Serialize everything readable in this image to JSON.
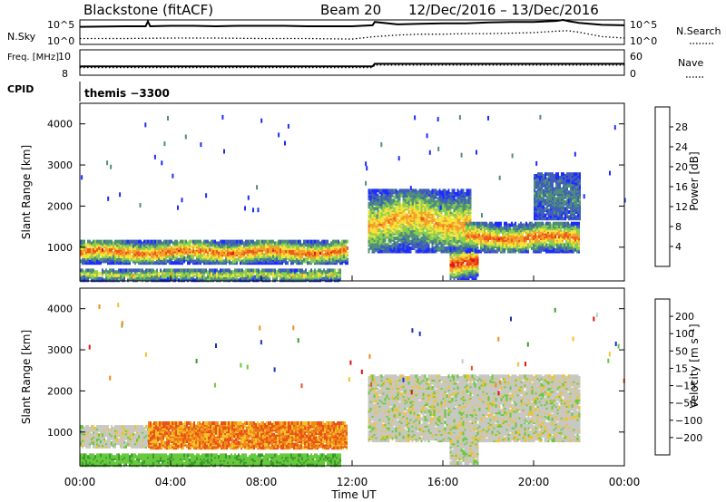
{
  "header": {
    "station": "Blackstone (fitACF)",
    "beam": "Beam 20",
    "dates": "12/Dec/2016 – 13/Dec/2016",
    "cpid_label": "CPID",
    "cpid_value": "themis −3300"
  },
  "colors": {
    "axis": "#000000",
    "dotted_line": "#000000"
  },
  "chart_data": [
    {
      "type": "line",
      "panel": "noise",
      "left_label": "N.Sky",
      "right_label": "N.Search",
      "left_ticks": [
        "10^5",
        "10^0"
      ],
      "right_ticks": [
        "10^5",
        "10^0"
      ],
      "ylim": [
        0,
        5
      ],
      "series": [
        {
          "name": "N.Sky",
          "style": "solid",
          "x": [
            0,
            2,
            2.9,
            3,
            3.1,
            4,
            5,
            6,
            7,
            8,
            9,
            10,
            11,
            12,
            12.9,
            13,
            14,
            15,
            16,
            17,
            18,
            19,
            20,
            21,
            21.3,
            21.5,
            21.6,
            22,
            23,
            24
          ],
          "y": [
            3.6,
            3.7,
            3.7,
            4.7,
            3.7,
            3.8,
            3.8,
            3.7,
            3.8,
            3.8,
            3.8,
            3.7,
            3.7,
            3.7,
            3.9,
            4.6,
            4.1,
            4.2,
            4.3,
            4.3,
            4.5,
            4.6,
            4.6,
            4.8,
            5.0,
            4.8,
            4.7,
            4.4,
            4.0,
            3.9
          ]
        },
        {
          "name": "N.Search",
          "style": "dotted",
          "x": [
            0,
            2,
            4,
            6,
            8,
            10,
            12,
            13,
            14,
            15,
            16,
            17,
            18,
            19,
            20,
            21,
            21.5,
            22,
            23,
            24
          ],
          "y": [
            1.2,
            1.2,
            1.3,
            1.3,
            1.2,
            1.2,
            1.1,
            1.6,
            1.9,
            2.1,
            2.1,
            2.2,
            2.2,
            2.3,
            2.4,
            2.7,
            2.8,
            2.5,
            1.6,
            1.3
          ]
        }
      ]
    },
    {
      "type": "line",
      "panel": "frequency",
      "left_label": "Freq. [MHz]",
      "right_label": "Nave",
      "left_ticks": [
        "10",
        "8"
      ],
      "right_ticks": [
        "60",
        "0"
      ],
      "ylim": [
        8,
        10
      ],
      "series": [
        {
          "name": "Freq",
          "style": "solid",
          "x": [
            0,
            12.9,
            13,
            24
          ],
          "y": [
            8.7,
            8.7,
            8.9,
            8.9
          ]
        },
        {
          "name": "Nave",
          "style": "dotted",
          "x": [
            0,
            12.9,
            13,
            24
          ],
          "y": [
            8.6,
            8.6,
            8.8,
            8.8
          ]
        }
      ]
    },
    {
      "type": "heatmap",
      "panel": "power",
      "ylabel": "Slant Range [km]",
      "yticks": [
        1000,
        2000,
        3000,
        4000
      ],
      "ylim": [
        180,
        4500
      ],
      "xlim": [
        0,
        24
      ],
      "colorbar_label": "Power [dB]",
      "colorbar_ticks": [
        4,
        8,
        12,
        16,
        20,
        24,
        28
      ],
      "colorbar_colors": [
        "#1e2bff",
        "#3f5fb8",
        "#4f8f7a",
        "#8bcf4f",
        "#f5e33c",
        "#f3a12a",
        "#ec5a1c",
        "#e4160d"
      ],
      "bands": [
        {
          "t0": 0,
          "t1": 11.8,
          "r0": 620,
          "r1": 1180,
          "level": 3,
          "core": 6
        },
        {
          "t0": 0,
          "t1": 11.5,
          "r0": 200,
          "r1": 480,
          "level": 2,
          "core": 4
        },
        {
          "t0": 12.7,
          "t1": 17.2,
          "r0": 900,
          "r1": 2400,
          "level": 3,
          "core": 5
        },
        {
          "t0": 16.3,
          "t1": 17.5,
          "r0": 250,
          "r1": 1000,
          "level": 4,
          "core": 7
        },
        {
          "t0": 17.0,
          "t1": 22.0,
          "r0": 900,
          "r1": 1600,
          "level": 3,
          "core": 6
        },
        {
          "t0": 20.0,
          "t1": 22.0,
          "r0": 1700,
          "r1": 2800,
          "level": 1,
          "core": 2
        }
      ]
    },
    {
      "type": "heatmap",
      "panel": "velocity",
      "ylabel": "Slant Range [km]",
      "yticks": [
        1000,
        2000,
        3000,
        4000
      ],
      "ylim": [
        180,
        4500
      ],
      "xlim": [
        0,
        24
      ],
      "xticks": [
        "00:00",
        "04:00",
        "08:00",
        "12:00",
        "16:00",
        "20:00",
        "00:00"
      ],
      "xlabel": "Time UT",
      "colorbar_label": "Velocity [m s⁻¹]",
      "colorbar_ticks": [
        "200",
        "100",
        "50",
        "15",
        "−15",
        "−50",
        "−100",
        "−200"
      ],
      "colorbar_colors": [
        "#1f2fb8",
        "#2c6a3a",
        "#3c9a2e",
        "#67c93d",
        "#c8c8c0",
        "#f2c22a",
        "#f08a18",
        "#e9531a",
        "#e0120e"
      ],
      "bands": [
        {
          "t0": 0,
          "t1": 3.0,
          "r0": 650,
          "r1": 1150,
          "value": 0
        },
        {
          "t0": 3.0,
          "t1": 11.8,
          "r0": 620,
          "r1": 1250,
          "value": -60
        },
        {
          "t0": 0,
          "t1": 11.5,
          "r0": 200,
          "r1": 480,
          "value": 40
        },
        {
          "t0": 12.7,
          "t1": 22.0,
          "r0": 800,
          "r1": 2400,
          "value": 0
        },
        {
          "t0": 16.3,
          "t1": 17.5,
          "r0": 250,
          "r1": 1000,
          "value": 0
        }
      ]
    }
  ]
}
